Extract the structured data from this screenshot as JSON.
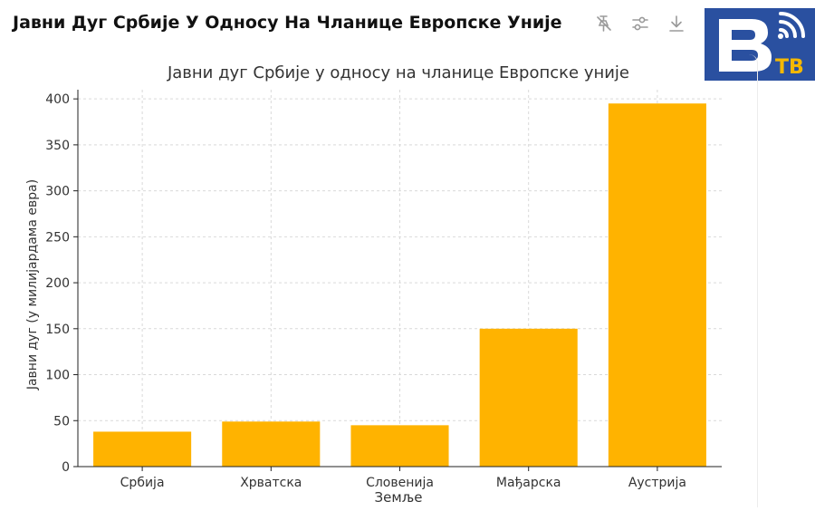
{
  "header": {
    "title": "Јавни Дуг Србије У Односу На Чланице Европске Уније",
    "tools": [
      {
        "name": "pin-off-icon"
      },
      {
        "name": "sliders-icon"
      },
      {
        "name": "download-icon"
      }
    ]
  },
  "logo": {
    "text": "TB",
    "bg_color": "#2a50a0",
    "accent_color": "#f5b800"
  },
  "chart_data": {
    "type": "bar",
    "title": "Јавни дуг Србије у односу на чланице Европске уније",
    "xlabel": "Земље",
    "ylabel": "Јавни дуг (у милијардама евра)",
    "categories": [
      "Србија",
      "Хрватска",
      "Словенија",
      "Мађарска",
      "Аустрија"
    ],
    "values": [
      38,
      49,
      45,
      150,
      395
    ],
    "ylim": [
      0,
      410
    ],
    "yticks": [
      0,
      50,
      100,
      150,
      200,
      250,
      300,
      350,
      400
    ],
    "grid": true,
    "bar_color": "#ffb300"
  }
}
